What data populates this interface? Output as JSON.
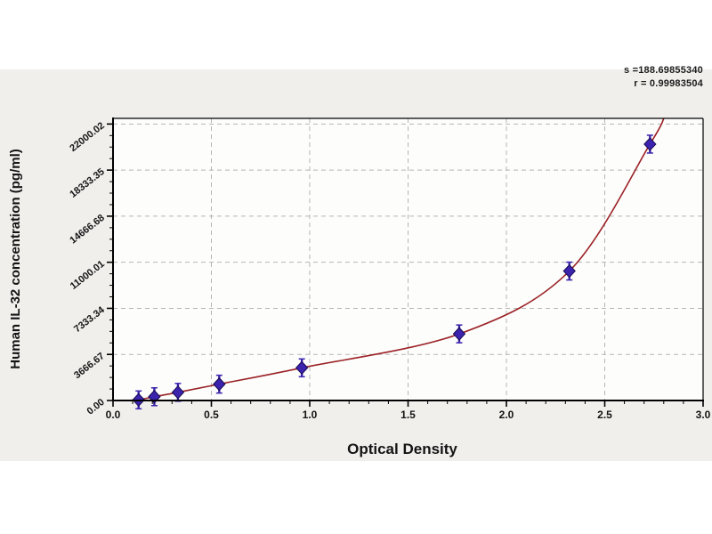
{
  "stats": {
    "line1": "s =188.69855340",
    "line2": "r = 0.99983504"
  },
  "chart_data": {
    "type": "scatter",
    "title": "",
    "xlabel": "Optical Density",
    "ylabel": "Human IL-32 concentration (pg/ml)",
    "xlim": [
      0,
      3.0
    ],
    "ylim": [
      0,
      22450
    ],
    "x_tick_values": [
      0,
      0.5,
      1.0,
      1.5,
      2.0,
      2.5,
      3.0
    ],
    "x_tick_labels": [
      "0.0",
      "0.5",
      "1.0",
      "1.5",
      "2.0",
      "2.5",
      "3.0"
    ],
    "y_tick_values": [
      0,
      3666.67,
      7333.34,
      11000.01,
      14666.68,
      18333.35,
      22000.02
    ],
    "y_tick_labels": [
      "0.00",
      "3666.67",
      "7333.34",
      "11000.01",
      "14666.68",
      "18333.35",
      "22000.02"
    ],
    "x_minor_step": 0.1,
    "y_minor_step": 916.6675,
    "grid": "dashed",
    "legend": "none",
    "series": [
      {
        "name": "standards",
        "type": "scatter",
        "marker": "diamond-with-error-bars",
        "color": "#3b23ad",
        "edge_color": "#15094f",
        "points": [
          [
            0.13,
            50
          ],
          [
            0.21,
            300
          ],
          [
            0.33,
            650
          ],
          [
            0.54,
            1300
          ],
          [
            0.96,
            2600
          ],
          [
            1.76,
            5300
          ],
          [
            2.32,
            10300
          ],
          [
            2.73,
            20400
          ]
        ]
      },
      {
        "name": "fitted-curve",
        "type": "line",
        "color": "#9b2226",
        "points": [
          [
            0.09,
            20
          ],
          [
            0.13,
            60
          ],
          [
            0.21,
            300
          ],
          [
            0.33,
            650
          ],
          [
            0.54,
            1300
          ],
          [
            0.96,
            2600
          ],
          [
            1.76,
            5300
          ],
          [
            2.32,
            10300
          ],
          [
            2.73,
            20400
          ],
          [
            2.8,
            22440
          ]
        ]
      }
    ],
    "colors": {
      "panel_bg": "#f0efec",
      "plot_bg": "#fdfdfc",
      "grid": "#b5b5b5",
      "axis": "#000000",
      "text": "#141414"
    }
  }
}
